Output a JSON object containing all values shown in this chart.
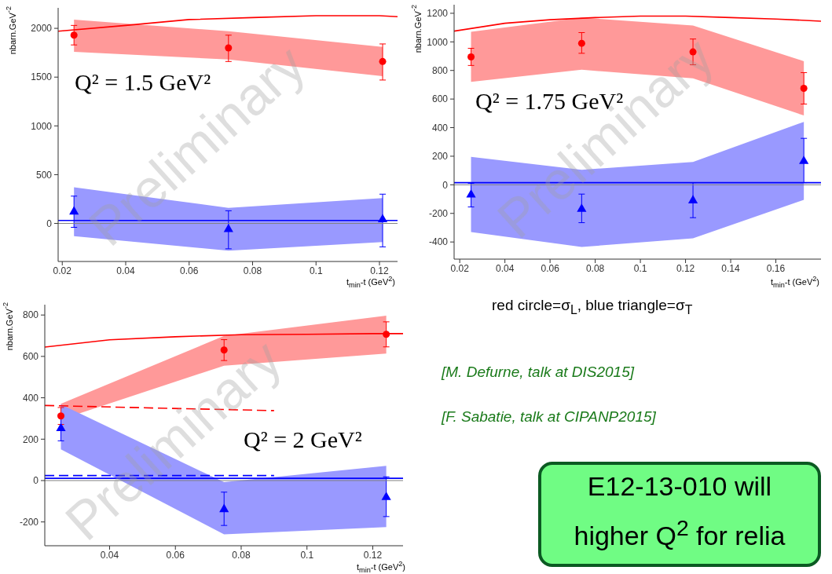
{
  "chart_data": [
    {
      "type": "scatter",
      "xlabel": "t$_{min}$-t (GeV$^{2}$)",
      "ylabel": "nbarn.GeV$^{-2}$",
      "xlim": [
        0.0187,
        0.1257
      ],
      "xticks": [
        0.02,
        0.04,
        0.06,
        0.08,
        0.1,
        0.12
      ],
      "ylim": [
        -390,
        2210
      ],
      "yticks": [
        0,
        500,
        1000,
        1500,
        2000
      ],
      "annotations": [
        "Q² = 1.5 GeV²",
        "Preliminary"
      ],
      "ref_lines": [
        {
          "axis": "y",
          "value": 0,
          "color": "#808080"
        }
      ],
      "series": [
        {
          "type": "line",
          "color": "#ff0000",
          "marker": "none",
          "line_style": "solid",
          "x": [
            0.0187,
            0.04,
            0.06,
            0.08,
            0.1,
            0.12,
            0.1257
          ],
          "values": [
            1970,
            2030,
            2090,
            2110,
            2130,
            2130,
            2120
          ]
        },
        {
          "type": "line",
          "color": "#0000ff",
          "marker": "none",
          "line_style": "solid",
          "x": [
            0.0187,
            0.1257
          ],
          "values": [
            30,
            30
          ]
        },
        {
          "type": "scatter",
          "color": "#ff0000",
          "marker": "circle",
          "x": [
            0.0237,
            0.0724,
            0.121
          ],
          "values": [
            1930,
            1800,
            1660
          ],
          "errors": [
            [
              1830,
              2030
            ],
            [
              1660,
              1930
            ],
            [
              1470,
              1840
            ]
          ],
          "lower": [
            1760,
            1680,
            1510
          ],
          "upper": [
            2090,
            1970,
            1810
          ]
        },
        {
          "type": "scatter",
          "color": "#0000ff",
          "marker": "triangle",
          "x": [
            0.0237,
            0.0724,
            0.121
          ],
          "values": [
            120,
            -60,
            40
          ],
          "errors": [
            [
              -40,
              280
            ],
            [
              -260,
              130
            ],
            [
              -240,
              300
            ]
          ],
          "lower": [
            -130,
            -280,
            -190
          ],
          "upper": [
            370,
            160,
            260
          ]
        }
      ]
    },
    {
      "type": "scatter",
      "xlabel": "t$_{min}$-t (GeV$^{2}$)",
      "ylabel": "nbarn.GeV$^{-2}$",
      "xlim": [
        0.0175,
        0.18
      ],
      "xticks": [
        0.02,
        0.04,
        0.06,
        0.08,
        0.1,
        0.12,
        0.14,
        0.16
      ],
      "ylim": [
        -520,
        1260
      ],
      "yticks": [
        -400,
        -200,
        0,
        200,
        400,
        600,
        800,
        1000,
        1200
      ],
      "annotations": [
        "Q² = 1.75 GeV²",
        "Preliminary"
      ],
      "ref_lines": [
        {
          "axis": "y",
          "value": 0,
          "color": "#808080"
        }
      ],
      "series": [
        {
          "type": "line",
          "color": "#ff0000",
          "marker": "none",
          "line_style": "solid",
          "x": [
            0.0175,
            0.04,
            0.06,
            0.08,
            0.1,
            0.12,
            0.14,
            0.16,
            0.18
          ],
          "values": [
            1075,
            1130,
            1155,
            1170,
            1180,
            1180,
            1170,
            1160,
            1145
          ]
        },
        {
          "type": "line",
          "color": "#0000ff",
          "marker": "none",
          "line_style": "solid",
          "x": [
            0.0175,
            0.18
          ],
          "values": [
            15,
            15
          ]
        },
        {
          "type": "scatter",
          "color": "#ff0000",
          "marker": "circle",
          "x": [
            0.025,
            0.074,
            0.1233,
            0.1724
          ],
          "values": [
            895,
            990,
            930,
            675
          ],
          "errors": [
            [
              835,
              955
            ],
            [
              920,
              1065
            ],
            [
              840,
              1020
            ],
            [
              565,
              785
            ]
          ],
          "lower": [
            720,
            805,
            745,
            485
          ],
          "upper": [
            1070,
            1170,
            1115,
            865
          ]
        },
        {
          "type": "scatter",
          "color": "#0000ff",
          "marker": "triangle",
          "x": [
            0.025,
            0.074,
            0.1233,
            0.1724
          ],
          "values": [
            -70,
            -170,
            -110,
            165
          ],
          "errors": [
            [
              -155,
              10
            ],
            [
              -265,
              -65
            ],
            [
              -230,
              15
            ],
            [
              15,
              325
            ]
          ],
          "lower": [
            -330,
            -435,
            -375,
            -105
          ],
          "upper": [
            195,
            105,
            160,
            440
          ]
        }
      ]
    },
    {
      "type": "scatter",
      "xlabel": "t$_{min}$-t (GeV$^{2}$)",
      "ylabel": "nbarn.GeV$^{-2}$",
      "xlim": [
        0.0203,
        0.1292
      ],
      "xticks": [
        0.04,
        0.06,
        0.08,
        0.1,
        0.12
      ],
      "ylim": [
        -315,
        850
      ],
      "yticks": [
        -200,
        0,
        200,
        400,
        600,
        800
      ],
      "annotations": [
        "Q² = 2 GeV²",
        "Preliminary"
      ],
      "ref_lines": [
        {
          "axis": "y",
          "value": 0,
          "color": "#808080"
        }
      ],
      "series": [
        {
          "type": "line",
          "color": "#ff0000",
          "marker": "none",
          "line_style": "solid",
          "x": [
            0.0203,
            0.04,
            0.06,
            0.08,
            0.1,
            0.12,
            0.1292
          ],
          "values": [
            645,
            680,
            695,
            705,
            707,
            710,
            710
          ]
        },
        {
          "type": "line",
          "color": "#ff0000",
          "marker": "none",
          "line_style": "dashed",
          "x": [
            0.0203,
            0.055,
            0.09
          ],
          "values": [
            363,
            350,
            338
          ]
        },
        {
          "type": "line",
          "color": "#0000ff",
          "marker": "none",
          "line_style": "solid",
          "x": [
            0.0203,
            0.1292
          ],
          "values": [
            11,
            11
          ]
        },
        {
          "type": "line",
          "color": "#0000ff",
          "marker": "none",
          "line_style": "dashed",
          "x": [
            0.0203,
            0.09
          ],
          "values": [
            24,
            24
          ]
        },
        {
          "type": "scatter",
          "color": "#ff0000",
          "marker": "circle",
          "x": [
            0.0252,
            0.0748,
            0.1241
          ],
          "values": [
            312,
            631,
            707
          ],
          "errors": [
            [
              271,
              353
            ],
            [
              580,
              681
            ],
            [
              646,
              767
            ]
          ],
          "lower": [
            295,
            555,
            614
          ],
          "upper": [
            371,
            699,
            797
          ]
        },
        {
          "type": "scatter",
          "color": "#0000ff",
          "marker": "triangle",
          "x": [
            0.0252,
            0.0748,
            0.1241
          ],
          "values": [
            252,
            -139,
            -81
          ],
          "errors": [
            [
              192,
              318
            ],
            [
              -217,
              -56
            ],
            [
              -174,
              18
            ]
          ],
          "lower": [
            151,
            -260,
            -225
          ],
          "upper": [
            368,
            -8,
            71
          ]
        }
      ]
    },
    {
      "type": "other",
      "annotations": [
        "red circle=σ$_{L}$, blue triangle=σ$_{T}$",
        "[M. Defurne, talk at DIS2015]",
        "[F. Sabatie, talk at CIPANP2015]",
        "E12-13-010 will",
        "higher Q$^{2}$ for relia"
      ]
    }
  ]
}
